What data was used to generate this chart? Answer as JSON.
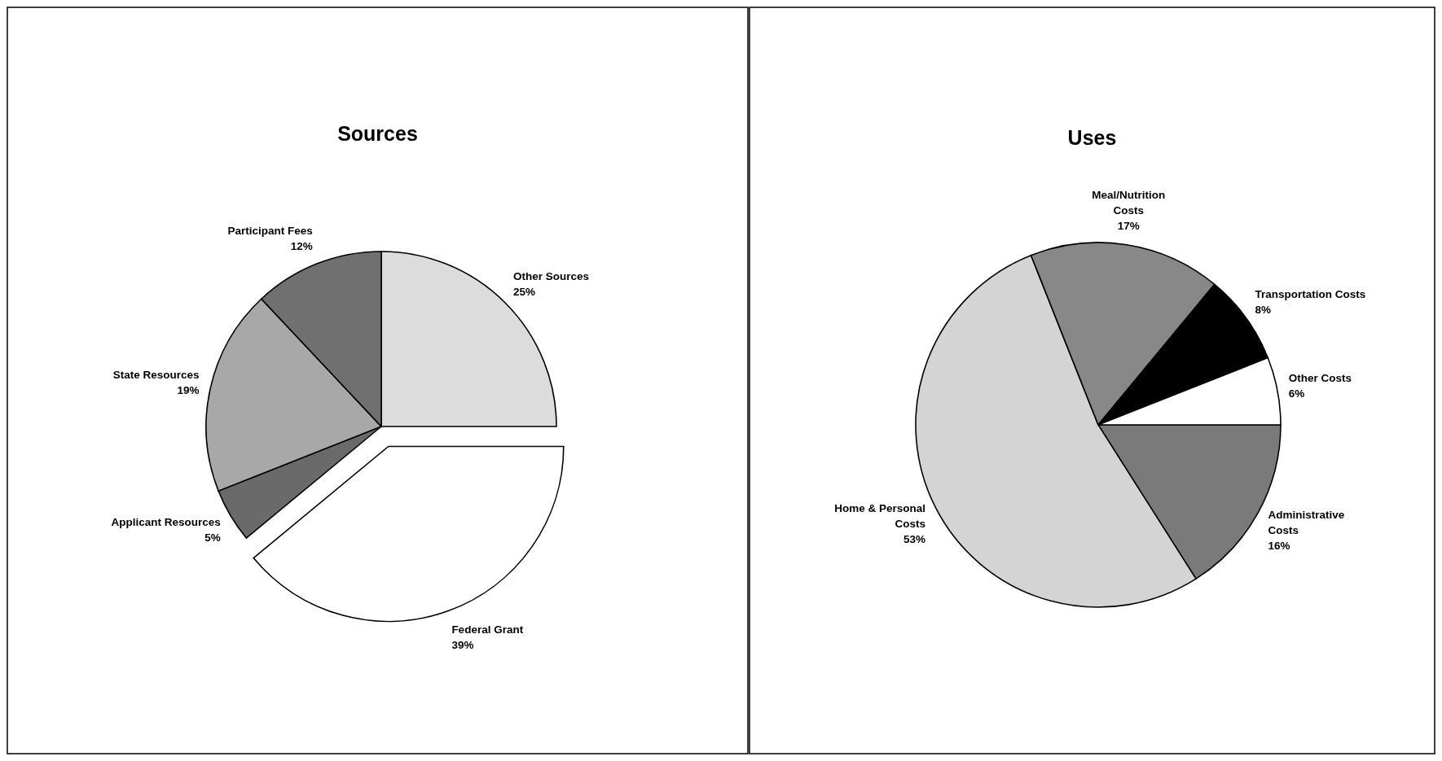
{
  "chart_data": [
    {
      "type": "pie",
      "title": "Sources",
      "categories": [
        "Other Sources",
        "Federal Grant",
        "Applicant Resources",
        "State Resources",
        "Participant Fees"
      ],
      "values": [
        25,
        39,
        5,
        19,
        12
      ],
      "colors": [
        "#dcdcdc",
        "#ffffff",
        "#6a6a6a",
        "#a8a8a8",
        "#707070"
      ],
      "value_labels": [
        "25%",
        "39%",
        "5%",
        "19%",
        "12%"
      ]
    },
    {
      "type": "pie",
      "title": "Uses",
      "categories": [
        "Administrative Costs",
        "Home & Personal Costs",
        "Meal/Nutrition Costs",
        "Transportation Costs",
        "Other Costs"
      ],
      "values": [
        16,
        53,
        17,
        8,
        6
      ],
      "colors": [
        "#7a7a7a",
        "#d4d4d4",
        "#888888",
        "#000000",
        "#ffffff"
      ],
      "value_labels": [
        "16%",
        "53%",
        "17%",
        "8%",
        "6%"
      ]
    }
  ]
}
